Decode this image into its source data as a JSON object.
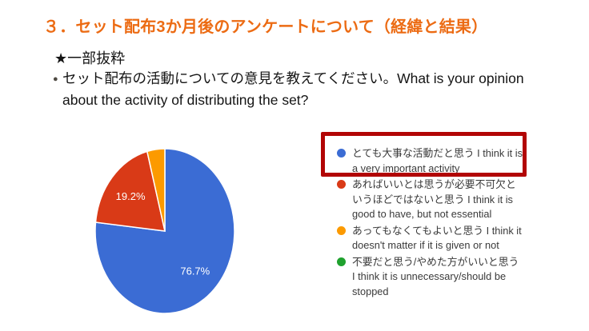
{
  "title": "３．セット配布3か月後のアンケートについて（経緯と結果）",
  "excerpt_note": "★一部抜粋",
  "question_bullet": "●",
  "question": "セット配布の活動についての意見を教えてください。What is your opinion about the activity of distributing the set?",
  "colors": {
    "title": "#ec6b13",
    "highlight_box": "#b20505",
    "pie_blue": "#3b6cd4",
    "pie_red": "#d93a17",
    "pie_orange": "#fc9a00",
    "legend_green": "#1fa12e",
    "pie_label_text": "#ffffff",
    "legend_text": "#3a3a3a"
  },
  "chart_data": {
    "type": "pie",
    "title": "",
    "legend_position": "right",
    "highlighted_legend_index": 0,
    "slices": [
      {
        "label": "とても大事な活動だと思う I think it is a very important activity",
        "value": 76.7,
        "data_label": "76.7%",
        "color": "#3b6cd4"
      },
      {
        "label": "あればいいとは思うが必要不可欠というほどではないと思う I think it is good to have, but not essential",
        "value": 19.2,
        "data_label": "19.2%",
        "color": "#d93a17"
      },
      {
        "label": "あってもなくてもよいと思う I think it doesn't matter if it is given or not",
        "value": 4.1,
        "data_label": "",
        "color": "#fc9a00"
      },
      {
        "label": "不要だと思う/やめた方がいいと思う I think it is unnecessary/should be stopped",
        "value": 0,
        "data_label": "",
        "color": "#1fa12e"
      }
    ]
  }
}
